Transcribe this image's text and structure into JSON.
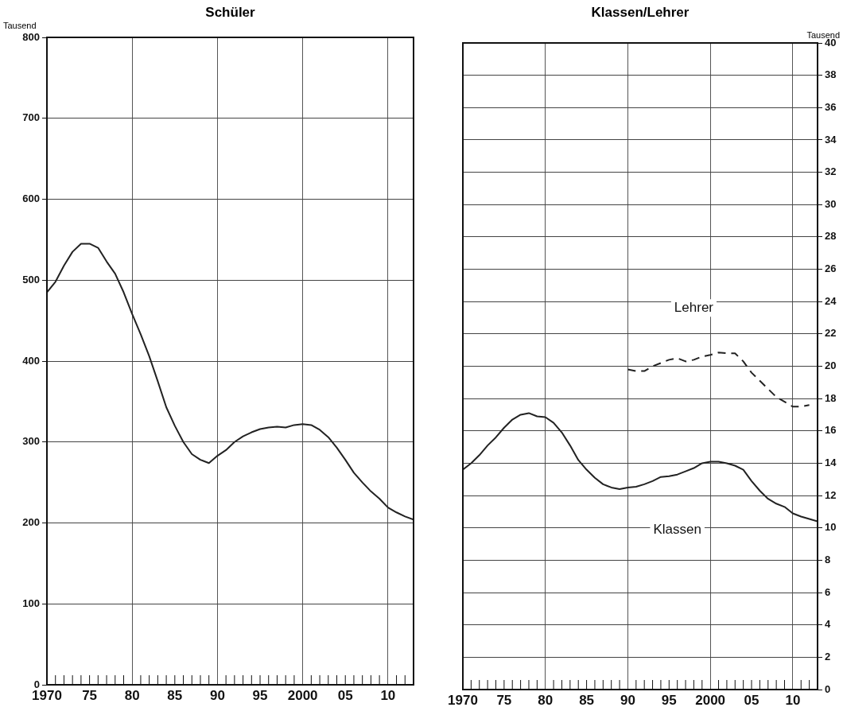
{
  "chart_data": [
    {
      "type": "line",
      "title": "Schüler",
      "ylabel": "Tausend",
      "x": [
        1970,
        1971,
        1972,
        1973,
        1974,
        1975,
        1976,
        1977,
        1978,
        1979,
        1980,
        1981,
        1982,
        1983,
        1984,
        1985,
        1986,
        1987,
        1988,
        1989,
        1990,
        1991,
        1992,
        1993,
        1994,
        1995,
        1996,
        1997,
        1998,
        1999,
        2000,
        2001,
        2002,
        2003,
        2004,
        2005,
        2006,
        2007,
        2008,
        2009,
        2010,
        2011,
        2012,
        2013
      ],
      "series": [
        {
          "color": "#222222",
          "values": [
            485,
            498,
            518,
            535,
            545,
            545,
            540,
            523,
            508,
            485,
            458,
            433,
            406,
            375,
            343,
            320,
            300,
            285,
            278,
            274,
            283,
            290,
            300,
            307,
            312,
            316,
            318,
            319,
            318,
            321,
            322,
            321,
            315,
            306,
            293,
            278,
            262,
            250,
            239,
            230,
            219,
            213,
            208,
            204
          ]
        }
      ],
      "xlim": [
        1970,
        2013
      ],
      "xticks": [
        {
          "value": 1970,
          "label": "1970"
        },
        {
          "value": 1971,
          "label": null
        },
        {
          "value": 1972,
          "label": null
        },
        {
          "value": 1973,
          "label": null
        },
        {
          "value": 1974,
          "label": null
        },
        {
          "value": 1975,
          "label": "75"
        },
        {
          "value": 1976,
          "label": null
        },
        {
          "value": 1977,
          "label": null
        },
        {
          "value": 1978,
          "label": null
        },
        {
          "value": 1979,
          "label": null
        },
        {
          "value": 1980,
          "label": "80"
        },
        {
          "value": 1981,
          "label": null
        },
        {
          "value": 1982,
          "label": null
        },
        {
          "value": 1983,
          "label": null
        },
        {
          "value": 1984,
          "label": null
        },
        {
          "value": 1985,
          "label": "85"
        },
        {
          "value": 1986,
          "label": null
        },
        {
          "value": 1987,
          "label": null
        },
        {
          "value": 1988,
          "label": null
        },
        {
          "value": 1989,
          "label": null
        },
        {
          "value": 1990,
          "label": "90"
        },
        {
          "value": 1991,
          "label": null
        },
        {
          "value": 1992,
          "label": null
        },
        {
          "value": 1993,
          "label": null
        },
        {
          "value": 1994,
          "label": null
        },
        {
          "value": 1995,
          "label": "95"
        },
        {
          "value": 1996,
          "label": null
        },
        {
          "value": 1997,
          "label": null
        },
        {
          "value": 1998,
          "label": null
        },
        {
          "value": 1999,
          "label": null
        },
        {
          "value": 2000,
          "label": "2000"
        },
        {
          "value": 2001,
          "label": null
        },
        {
          "value": 2002,
          "label": null
        },
        {
          "value": 2003,
          "label": null
        },
        {
          "value": 2004,
          "label": null
        },
        {
          "value": 2005,
          "label": "05"
        },
        {
          "value": 2006,
          "label": null
        },
        {
          "value": 2007,
          "label": null
        },
        {
          "value": 2008,
          "label": null
        },
        {
          "value": 2009,
          "label": null
        },
        {
          "value": 2010,
          "label": "10"
        },
        {
          "value": 2011,
          "label": null
        },
        {
          "value": 2012,
          "label": null
        }
      ],
      "ylim": [
        0,
        800
      ],
      "yticks": [
        0,
        100,
        200,
        300,
        400,
        500,
        600,
        700,
        800
      ],
      "grid": true
    },
    {
      "type": "line",
      "title": "Klassen/Lehrer",
      "y2label": "Tausend",
      "x": [
        1970,
        1971,
        1972,
        1973,
        1974,
        1975,
        1976,
        1977,
        1978,
        1979,
        1980,
        1981,
        1982,
        1983,
        1984,
        1985,
        1986,
        1987,
        1988,
        1989,
        1990,
        1991,
        1992,
        1993,
        1994,
        1995,
        1996,
        1997,
        1998,
        1999,
        2000,
        2001,
        2002,
        2003,
        2004,
        2005,
        2006,
        2007,
        2008,
        2009,
        2010,
        2011,
        2012,
        2013
      ],
      "series": [
        {
          "name": "Klassen",
          "color": "#222222",
          "axis": "y2",
          "values": [
            13.6,
            14.0,
            14.5,
            15.1,
            15.6,
            16.2,
            16.7,
            17.0,
            17.1,
            16.9,
            16.85,
            16.5,
            15.9,
            15.1,
            14.2,
            13.6,
            13.1,
            12.7,
            12.5,
            12.4,
            12.5,
            12.55,
            12.7,
            12.9,
            13.15,
            13.2,
            13.3,
            13.5,
            13.7,
            14.0,
            14.1,
            14.1,
            14.0,
            13.85,
            13.6,
            12.9,
            12.3,
            11.8,
            11.5,
            11.3,
            10.9,
            10.7,
            10.55,
            10.4
          ]
        },
        {
          "name": "Lehrer",
          "color": "#222222",
          "axis": "y2",
          "line_style": "dashed",
          "x": [
            1990,
            1991,
            1992,
            1993,
            1994,
            1995,
            1996,
            1997,
            1998,
            1999,
            2000,
            2001,
            2002,
            2003,
            2004,
            2005,
            2006,
            2007,
            2008,
            2009,
            2010,
            2011,
            2012
          ],
          "values": [
            19.8,
            19.7,
            19.7,
            20.0,
            20.2,
            20.4,
            20.5,
            20.3,
            20.4,
            20.6,
            20.7,
            20.85,
            20.8,
            20.8,
            20.3,
            19.6,
            19.1,
            18.6,
            18.1,
            17.8,
            17.5,
            17.5,
            17.6
          ]
        }
      ],
      "xlim": [
        1970,
        2013
      ],
      "xticks": [
        {
          "value": 1970,
          "label": "1970"
        },
        {
          "value": 1971,
          "label": null
        },
        {
          "value": 1972,
          "label": null
        },
        {
          "value": 1973,
          "label": null
        },
        {
          "value": 1974,
          "label": null
        },
        {
          "value": 1975,
          "label": "75"
        },
        {
          "value": 1976,
          "label": null
        },
        {
          "value": 1977,
          "label": null
        },
        {
          "value": 1978,
          "label": null
        },
        {
          "value": 1979,
          "label": null
        },
        {
          "value": 1980,
          "label": "80"
        },
        {
          "value": 1981,
          "label": null
        },
        {
          "value": 1982,
          "label": null
        },
        {
          "value": 1983,
          "label": null
        },
        {
          "value": 1984,
          "label": null
        },
        {
          "value": 1985,
          "label": "85"
        },
        {
          "value": 1986,
          "label": null
        },
        {
          "value": 1987,
          "label": null
        },
        {
          "value": 1988,
          "label": null
        },
        {
          "value": 1989,
          "label": null
        },
        {
          "value": 1990,
          "label": "90"
        },
        {
          "value": 1991,
          "label": null
        },
        {
          "value": 1992,
          "label": null
        },
        {
          "value": 1993,
          "label": null
        },
        {
          "value": 1994,
          "label": null
        },
        {
          "value": 1995,
          "label": "95"
        },
        {
          "value": 1996,
          "label": null
        },
        {
          "value": 1997,
          "label": null
        },
        {
          "value": 1998,
          "label": null
        },
        {
          "value": 1999,
          "label": null
        },
        {
          "value": 2000,
          "label": "2000"
        },
        {
          "value": 2001,
          "label": null
        },
        {
          "value": 2002,
          "label": null
        },
        {
          "value": 2003,
          "label": null
        },
        {
          "value": 2004,
          "label": null
        },
        {
          "value": 2005,
          "label": "05"
        },
        {
          "value": 2006,
          "label": null
        },
        {
          "value": 2007,
          "label": null
        },
        {
          "value": 2008,
          "label": null
        },
        {
          "value": 2009,
          "label": null
        },
        {
          "value": 2010,
          "label": "10"
        },
        {
          "value": 2011,
          "label": null
        },
        {
          "value": 2012,
          "label": null
        }
      ],
      "y2lim": [
        0,
        40
      ],
      "y2ticks": [
        0,
        2,
        4,
        6,
        8,
        10,
        12,
        14,
        16,
        18,
        20,
        22,
        24,
        26,
        28,
        30,
        32,
        34,
        36,
        38,
        40
      ],
      "grid": true
    }
  ]
}
